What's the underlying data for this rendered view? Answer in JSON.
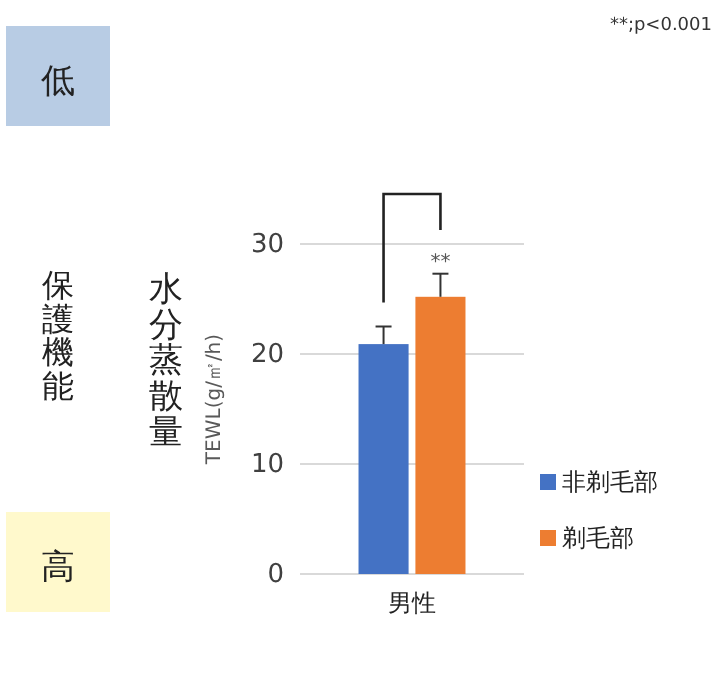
{
  "chart_data": {
    "type": "bar",
    "categories": [
      "男性"
    ],
    "series": [
      {
        "name": "非剃毛部",
        "color": "#4472c4",
        "values": [
          20.9
        ],
        "errors": [
          1.6
        ]
      },
      {
        "name": "剃毛部",
        "color": "#ed7d31",
        "values": [
          25.2
        ],
        "errors": [
          2.1
        ]
      }
    ],
    "ylabel": "TEWL(g/㎡/h)",
    "ylim": [
      0,
      30
    ],
    "yticks": [
      0,
      10,
      20,
      30
    ],
    "grid": "y",
    "legend": "bottom right",
    "annotations": [
      "**;p<0.001",
      "**",
      "低",
      "高",
      "保護機能",
      "水分蒸散量"
    ]
  }
}
